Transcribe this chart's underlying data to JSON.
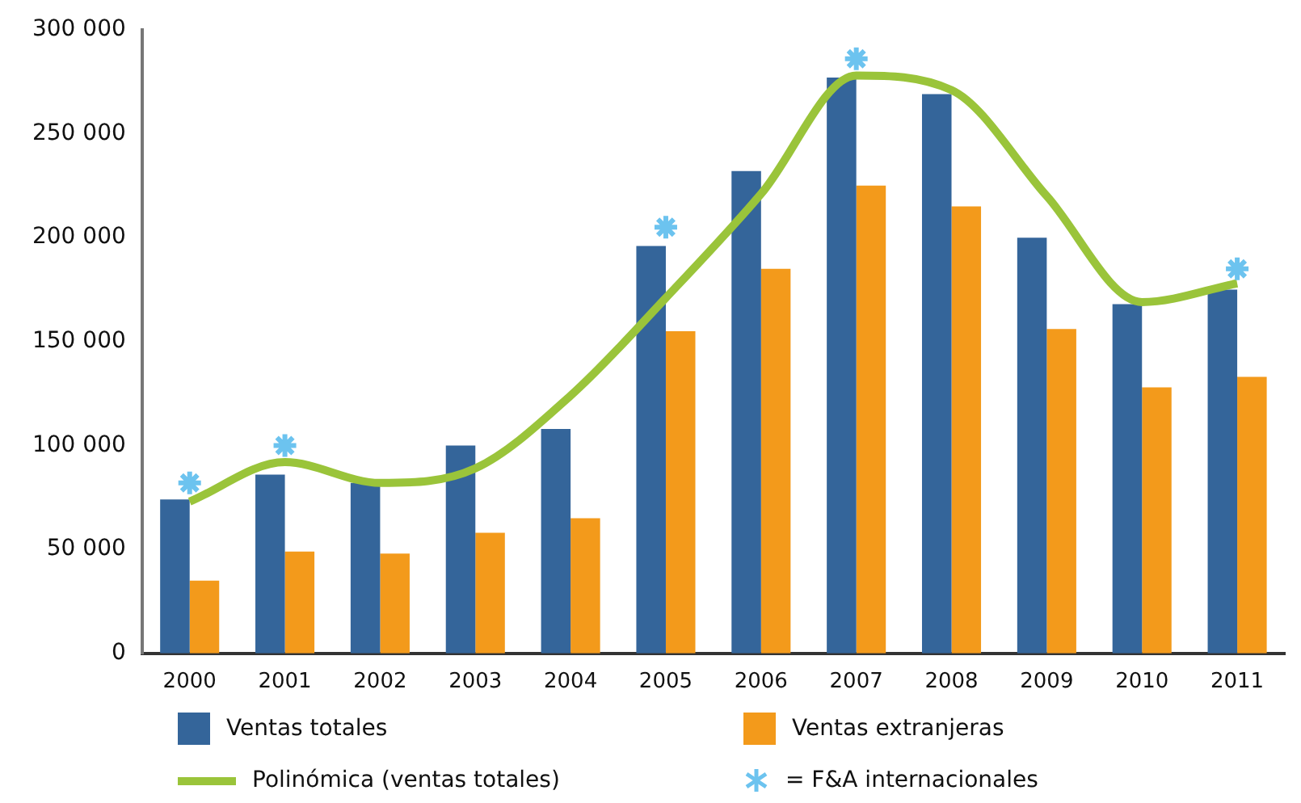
{
  "chart_data": {
    "type": "bar",
    "categories": [
      "2000",
      "2001",
      "2002",
      "2003",
      "2004",
      "2005",
      "2006",
      "2007",
      "2008",
      "2009",
      "2010",
      "2011"
    ],
    "series": [
      {
        "name": "Ventas totales",
        "color": "#34659a",
        "values": [
          74000,
          86000,
          82000,
          100000,
          108000,
          196000,
          232000,
          277000,
          269000,
          200000,
          168000,
          175000
        ]
      },
      {
        "name": "Ventas extranjeras",
        "color": "#f39a1b",
        "values": [
          35000,
          49000,
          48000,
          58000,
          65000,
          155000,
          185000,
          225000,
          215000,
          156000,
          128000,
          133000
        ]
      },
      {
        "name": "Polinómica (ventas totales)",
        "type": "line",
        "color": "#9ac43a",
        "values": [
          73000,
          92000,
          82000,
          89000,
          124000,
          171000,
          221000,
          278000,
          271000,
          220000,
          169000,
          178000
        ]
      },
      {
        "name": "= F&A internacionales",
        "type": "scatter",
        "marker": "cross",
        "color": "#6cc3ef",
        "values": [
          82000,
          100000,
          null,
          null,
          null,
          205000,
          null,
          286000,
          null,
          null,
          null,
          185000
        ]
      }
    ],
    "ylim": [
      0,
      300000
    ],
    "yticks": [
      {
        "value": 0,
        "label": "0"
      },
      {
        "value": 50000,
        "label": "50 000"
      },
      {
        "value": 100000,
        "label": "100 000"
      },
      {
        "value": 150000,
        "label": "150 000"
      },
      {
        "value": 200000,
        "label": "200 000"
      },
      {
        "value": 250000,
        "label": "250 000"
      },
      {
        "value": 300000,
        "label": "300 000"
      }
    ],
    "grid": false,
    "legend": "bottom"
  }
}
